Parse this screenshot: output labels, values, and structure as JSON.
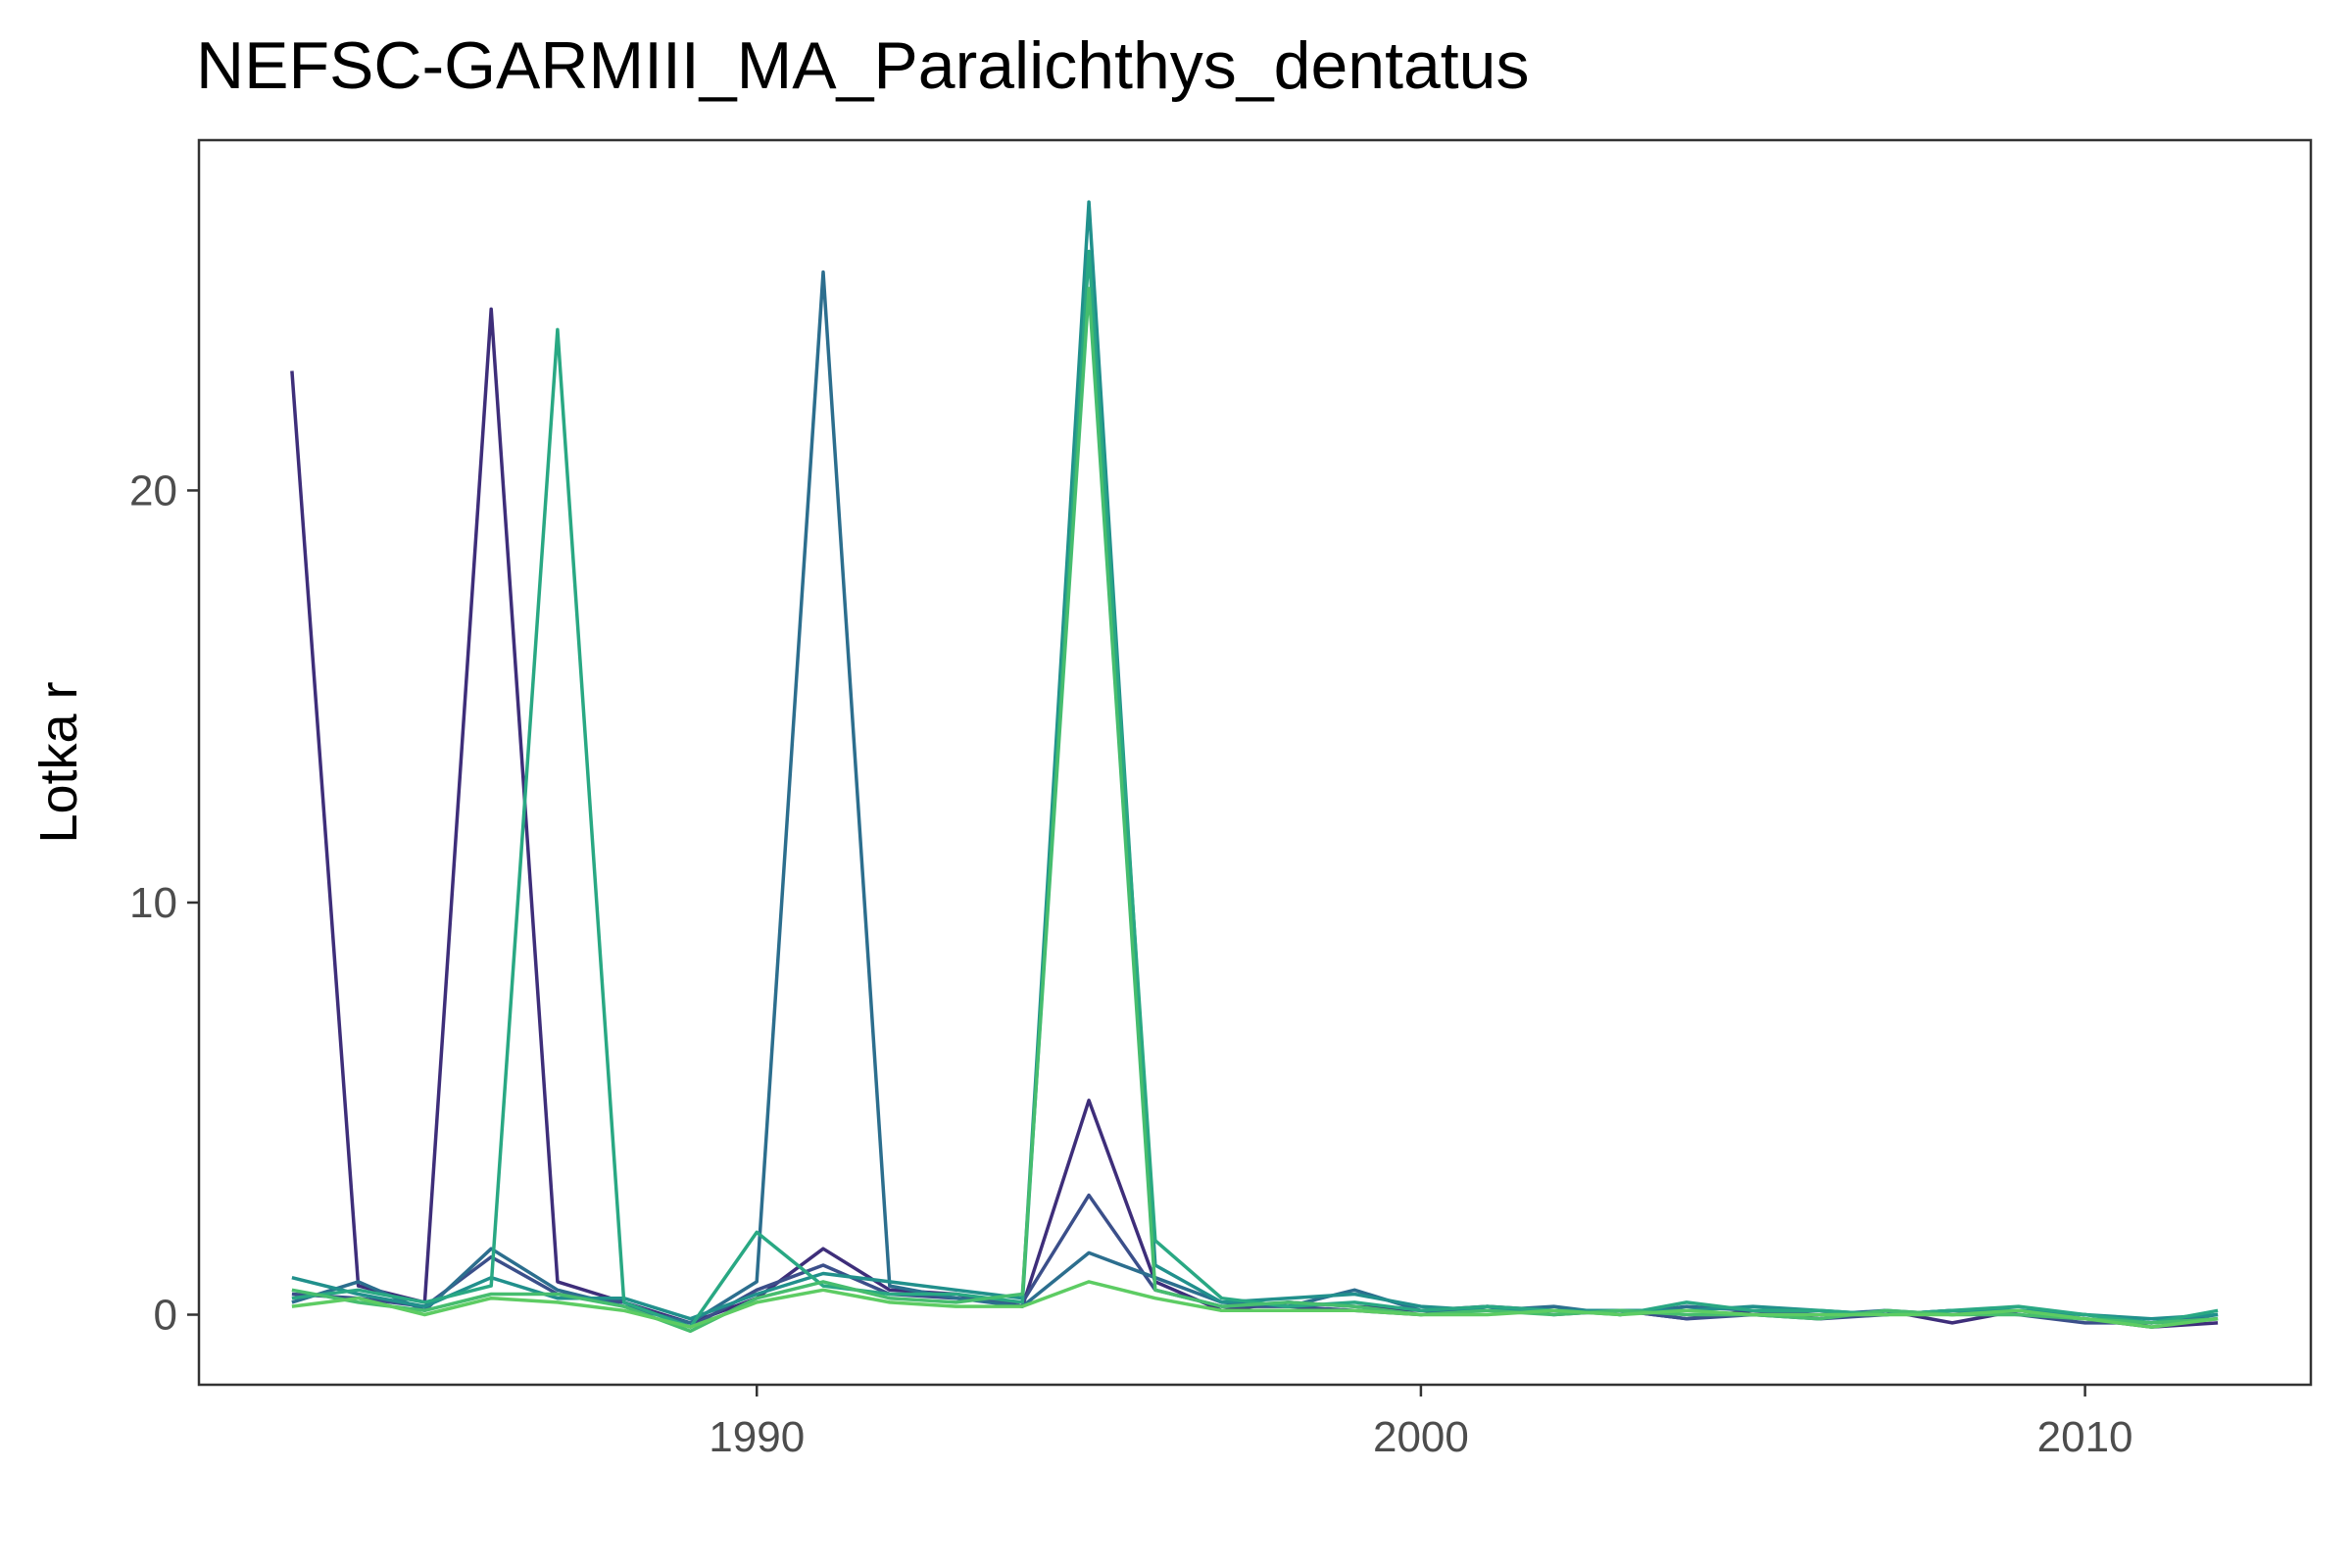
{
  "title": "NEFSC-GARMIII_MA_Paralichthys_dentatus",
  "chart_data": {
    "type": "line",
    "title": "NEFSC-GARMIII_MA_Paralichthys_dentatus",
    "xlabel": "",
    "ylabel": "Lotka r",
    "xlim": [
      1981.6,
      2013.4
    ],
    "ylim": [
      -1.7,
      28.5
    ],
    "xticks": [
      1990,
      2000,
      2010
    ],
    "yticks": [
      0,
      10,
      20
    ],
    "grid": false,
    "legend": "none",
    "colors": [
      "#3e2e7a",
      "#3b4f8a",
      "#2c6e8e",
      "#21908c",
      "#29a883",
      "#46bd6e",
      "#5dcc63"
    ],
    "x": [
      1983,
      1984,
      1985,
      1986,
      1987,
      1988,
      1989,
      1990,
      1991,
      1992,
      1993,
      1994,
      1995,
      1996,
      1997,
      1998,
      1999,
      2000,
      2001,
      2002,
      2003,
      2004,
      2005,
      2006,
      2007,
      2008,
      2009,
      2010,
      2011,
      2012
    ],
    "series": [
      {
        "values": [
          22.9,
          0.7,
          0.3,
          24.4,
          0.8,
          0.3,
          -0.2,
          0.4,
          1.6,
          0.6,
          0.5,
          0.2,
          5.2,
          0.8,
          0.1,
          0.3,
          0.2,
          0.1,
          0.2,
          0.1,
          0.1,
          -0.1,
          0.1,
          -0.1,
          0.1,
          -0.2,
          0.1,
          -0.1,
          -0.3,
          -0.2
        ]
      },
      {
        "values": [
          0.5,
          0.4,
          0.2,
          1.4,
          0.5,
          0.3,
          -0.3,
          0.6,
          1.2,
          0.5,
          0.4,
          0.3,
          2.9,
          0.6,
          0.2,
          0.2,
          0.1,
          0.0,
          0.2,
          0.0,
          0.1,
          -0.1,
          0.0,
          -0.1,
          0.0,
          0.1,
          0.0,
          -0.2,
          -0.2,
          -0.1
        ]
      },
      {
        "values": [
          0.3,
          0.8,
          0.1,
          1.6,
          0.6,
          0.2,
          -0.2,
          0.8,
          25.3,
          0.7,
          0.4,
          0.2,
          1.5,
          0.9,
          0.3,
          0.2,
          0.6,
          0.1,
          0.1,
          0.2,
          0.0,
          0.2,
          0.1,
          0.0,
          0.1,
          0.0,
          0.1,
          0.0,
          -0.2,
          0.0
        ]
      },
      {
        "values": [
          0.9,
          0.5,
          0.2,
          0.9,
          0.4,
          0.4,
          -0.1,
          0.5,
          1.0,
          0.8,
          0.6,
          0.4,
          27.0,
          1.2,
          0.3,
          0.4,
          0.5,
          0.2,
          0.1,
          0.1,
          0.1,
          0.1,
          0.2,
          0.1,
          0.0,
          0.1,
          0.1,
          0.0,
          -0.1,
          0.0
        ]
      },
      {
        "values": [
          0.4,
          0.6,
          0.3,
          0.7,
          23.9,
          0.3,
          -0.3,
          2.0,
          0.7,
          0.5,
          0.5,
          0.3,
          25.8,
          1.8,
          0.4,
          0.2,
          0.3,
          0.1,
          0.2,
          0.1,
          0.0,
          0.3,
          0.1,
          0.1,
          0.0,
          0.1,
          0.2,
          0.0,
          -0.2,
          0.1
        ]
      },
      {
        "values": [
          0.6,
          0.3,
          0.1,
          0.5,
          0.5,
          0.2,
          -0.4,
          0.4,
          0.8,
          0.4,
          0.3,
          0.5,
          24.9,
          0.6,
          0.2,
          0.3,
          0.2,
          0.0,
          0.1,
          0.0,
          0.1,
          0.0,
          0.0,
          -0.1,
          0.1,
          0.0,
          0.0,
          -0.1,
          -0.2,
          -0.1
        ]
      },
      {
        "values": [
          0.2,
          0.4,
          0.0,
          0.4,
          0.3,
          0.1,
          -0.3,
          0.3,
          0.6,
          0.3,
          0.2,
          0.2,
          0.8,
          0.4,
          0.1,
          0.1,
          0.1,
          0.0,
          0.0,
          0.1,
          0.0,
          0.1,
          0.0,
          0.0,
          0.0,
          0.0,
          0.1,
          -0.1,
          -0.3,
          -0.1
        ]
      }
    ]
  }
}
